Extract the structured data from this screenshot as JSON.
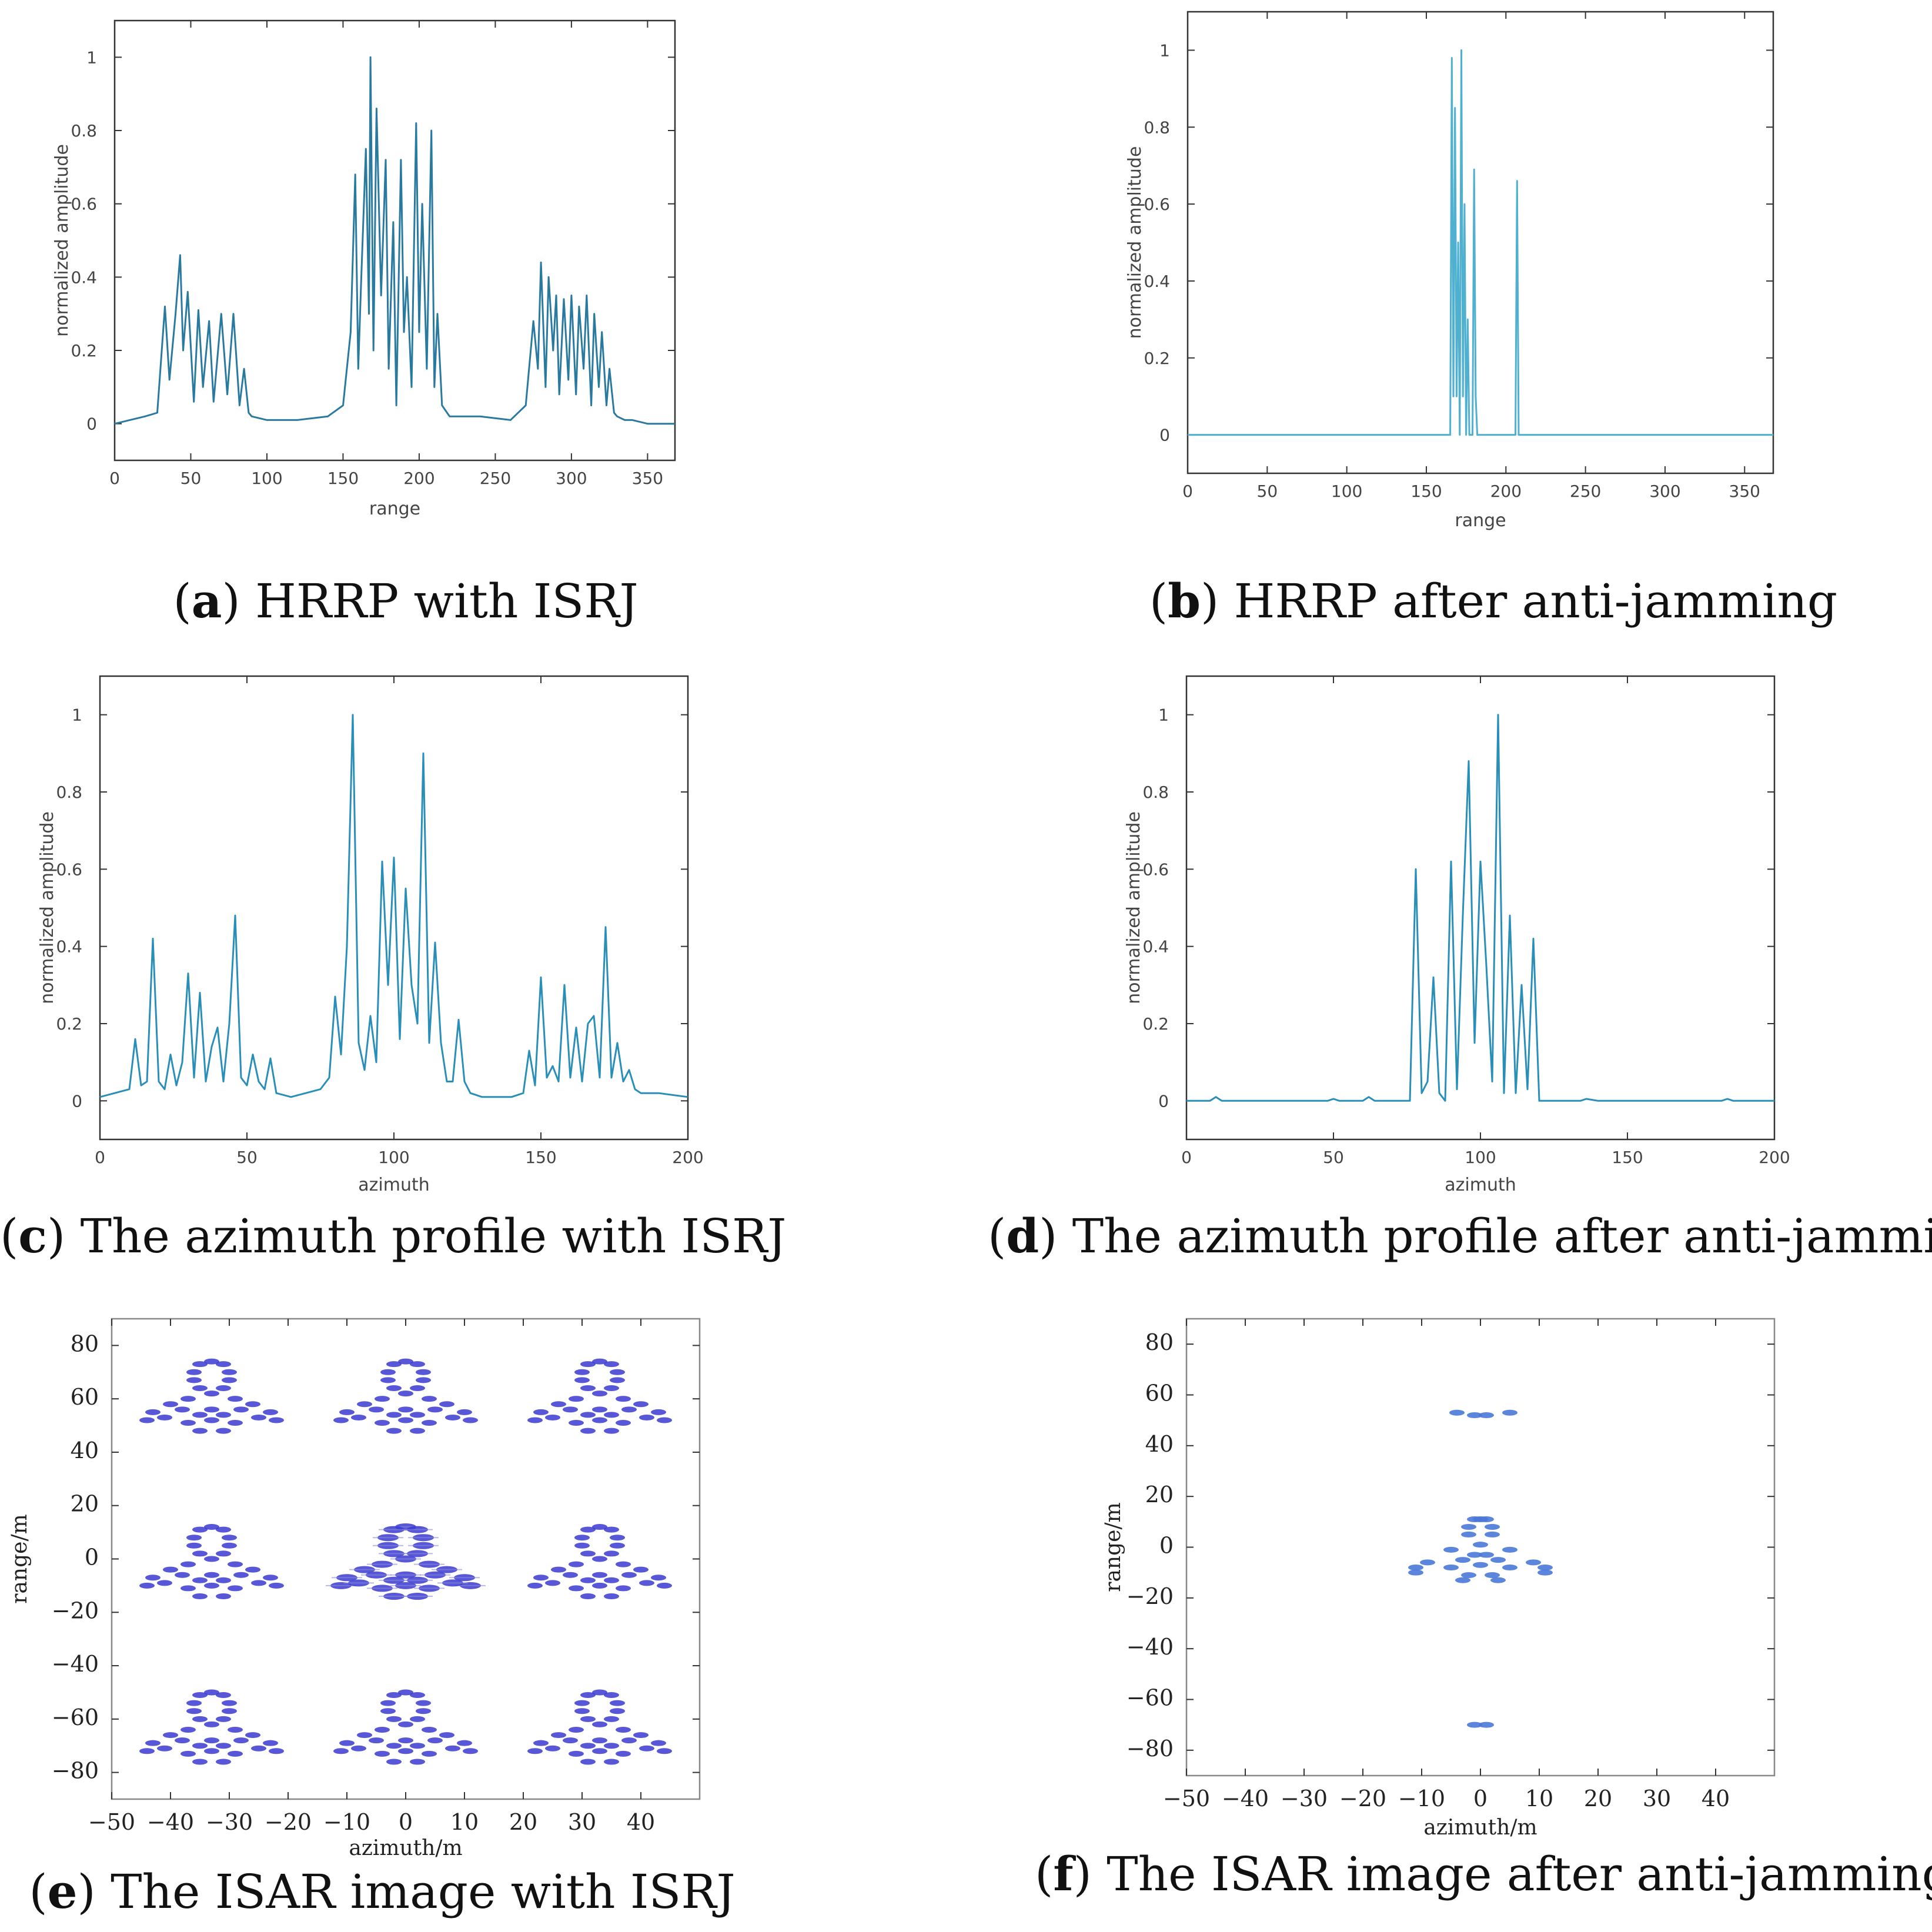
{
  "chart_data": [
    {
      "id": "a",
      "type": "line",
      "caption_letter": "a",
      "caption_text": "HRRP with ISRJ",
      "xlabel": "range",
      "ylabel": "normalized amplitude",
      "xlim": [
        0,
        368
      ],
      "ylim": [
        -0.1,
        1.1
      ],
      "xticks": [
        0,
        50,
        100,
        150,
        200,
        250,
        300,
        350
      ],
      "yticks": [
        0,
        0.2,
        0.4,
        0.6,
        0.8,
        1
      ],
      "color": "#2a7aa0",
      "x": [
        0,
        10,
        20,
        28,
        33,
        36,
        40,
        43,
        45,
        48,
        52,
        55,
        58,
        62,
        65,
        70,
        74,
        78,
        82,
        85,
        88,
        90,
        100,
        120,
        140,
        150,
        155,
        158,
        160,
        162,
        165,
        167,
        168,
        170,
        172,
        175,
        178,
        180,
        183,
        185,
        188,
        190,
        192,
        195,
        198,
        200,
        202,
        205,
        208,
        210,
        212,
        215,
        220,
        240,
        260,
        270,
        275,
        278,
        280,
        283,
        285,
        288,
        290,
        292,
        295,
        298,
        300,
        303,
        305,
        308,
        310,
        313,
        315,
        318,
        320,
        323,
        325,
        328,
        330,
        335,
        340,
        350,
        360,
        368
      ],
      "values": [
        0.0,
        0.01,
        0.02,
        0.03,
        0.32,
        0.12,
        0.3,
        0.46,
        0.2,
        0.36,
        0.06,
        0.31,
        0.1,
        0.28,
        0.06,
        0.3,
        0.08,
        0.3,
        0.05,
        0.15,
        0.03,
        0.02,
        0.01,
        0.01,
        0.02,
        0.05,
        0.25,
        0.68,
        0.15,
        0.4,
        0.75,
        0.3,
        1.0,
        0.2,
        0.86,
        0.35,
        0.72,
        0.15,
        0.55,
        0.05,
        0.72,
        0.25,
        0.4,
        0.1,
        0.82,
        0.25,
        0.6,
        0.15,
        0.8,
        0.1,
        0.3,
        0.05,
        0.02,
        0.02,
        0.01,
        0.05,
        0.28,
        0.15,
        0.44,
        0.1,
        0.4,
        0.2,
        0.35,
        0.08,
        0.34,
        0.12,
        0.35,
        0.08,
        0.32,
        0.15,
        0.35,
        0.05,
        0.3,
        0.1,
        0.25,
        0.05,
        0.15,
        0.03,
        0.02,
        0.01,
        0.01,
        0.0,
        0.0,
        0.0
      ]
    },
    {
      "id": "b",
      "type": "line",
      "caption_letter": "b",
      "caption_text": "HRRP after anti-jamming",
      "xlabel": "range",
      "ylabel": "normalized amplitude",
      "xlim": [
        0,
        368
      ],
      "ylim": [
        -0.1,
        1.1
      ],
      "xticks": [
        0,
        50,
        100,
        150,
        200,
        250,
        300,
        350
      ],
      "yticks": [
        0,
        0.2,
        0.4,
        0.6,
        0.8,
        1
      ],
      "color": "#4fb0d0",
      "x": [
        0,
        163,
        165,
        166,
        167,
        168,
        169,
        170,
        171,
        172,
        173,
        174,
        175,
        176,
        177,
        178,
        179,
        180,
        181,
        182,
        183,
        184,
        185,
        206,
        207,
        208,
        209,
        368
      ],
      "values": [
        0,
        0,
        0,
        0.98,
        0.1,
        0.85,
        0.1,
        0.5,
        0.0,
        1.0,
        0.1,
        0.6,
        0.0,
        0.3,
        0.0,
        0.0,
        0.0,
        0.69,
        0.1,
        0.0,
        0.0,
        0.0,
        0.0,
        0.0,
        0.66,
        0.0,
        0.0,
        0.0
      ]
    },
    {
      "id": "c",
      "type": "line",
      "caption_letter": "c",
      "caption_text": "The azimuth profile with ISRJ",
      "xlabel": "azimuth",
      "ylabel": "normalized amplitude",
      "xlim": [
        0,
        200
      ],
      "ylim": [
        -0.1,
        1.1
      ],
      "xticks": [
        0,
        50,
        100,
        150,
        200
      ],
      "yticks": [
        0,
        0.2,
        0.4,
        0.6,
        0.8,
        1
      ],
      "color": "#2a8fb8",
      "x": [
        0,
        5,
        10,
        12,
        14,
        16,
        18,
        20,
        22,
        24,
        26,
        28,
        30,
        32,
        34,
        36,
        38,
        40,
        42,
        44,
        46,
        48,
        50,
        52,
        54,
        56,
        58,
        60,
        65,
        70,
        75,
        78,
        80,
        82,
        84,
        86,
        88,
        90,
        92,
        94,
        96,
        98,
        100,
        102,
        104,
        106,
        108,
        110,
        112,
        114,
        116,
        118,
        120,
        122,
        124,
        126,
        130,
        140,
        144,
        146,
        148,
        150,
        152,
        154,
        156,
        158,
        160,
        162,
        164,
        166,
        168,
        170,
        172,
        174,
        176,
        178,
        180,
        182,
        184,
        186,
        190,
        200
      ],
      "values": [
        0.01,
        0.02,
        0.03,
        0.16,
        0.04,
        0.05,
        0.42,
        0.05,
        0.03,
        0.12,
        0.04,
        0.1,
        0.33,
        0.06,
        0.28,
        0.05,
        0.14,
        0.19,
        0.05,
        0.2,
        0.48,
        0.06,
        0.04,
        0.12,
        0.05,
        0.03,
        0.11,
        0.02,
        0.01,
        0.02,
        0.03,
        0.06,
        0.27,
        0.12,
        0.4,
        1.0,
        0.15,
        0.08,
        0.22,
        0.1,
        0.62,
        0.3,
        0.63,
        0.16,
        0.55,
        0.3,
        0.2,
        0.9,
        0.15,
        0.41,
        0.15,
        0.05,
        0.05,
        0.21,
        0.05,
        0.02,
        0.01,
        0.01,
        0.02,
        0.13,
        0.04,
        0.32,
        0.06,
        0.09,
        0.05,
        0.3,
        0.06,
        0.19,
        0.05,
        0.2,
        0.22,
        0.06,
        0.45,
        0.06,
        0.15,
        0.05,
        0.08,
        0.03,
        0.02,
        0.02,
        0.02,
        0.01
      ]
    },
    {
      "id": "d",
      "type": "line",
      "caption_letter": "d",
      "caption_text": "The azimuth profile after anti-jamming",
      "xlabel": "azimuth",
      "ylabel": "normalized amplitude",
      "xlim": [
        0,
        200
      ],
      "ylim": [
        -0.1,
        1.1
      ],
      "xticks": [
        0,
        50,
        100,
        150,
        200
      ],
      "yticks": [
        0,
        0.2,
        0.4,
        0.6,
        0.8,
        1
      ],
      "color": "#2a8fb8",
      "x": [
        0,
        8,
        10,
        12,
        48,
        50,
        52,
        60,
        62,
        64,
        76,
        78,
        80,
        82,
        84,
        86,
        88,
        90,
        92,
        94,
        96,
        98,
        100,
        102,
        104,
        106,
        108,
        110,
        112,
        114,
        116,
        118,
        120,
        122,
        124,
        126,
        130,
        134,
        136,
        140,
        150,
        160,
        182,
        184,
        186,
        200
      ],
      "values": [
        0,
        0,
        0.01,
        0,
        0,
        0.005,
        0,
        0,
        0.01,
        0,
        0,
        0.6,
        0.02,
        0.05,
        0.32,
        0.02,
        0.0,
        0.62,
        0.03,
        0.48,
        0.88,
        0.15,
        0.62,
        0.35,
        0.05,
        1.0,
        0.02,
        0.48,
        0.02,
        0.3,
        0.03,
        0.42,
        0.0,
        0.0,
        0.0,
        0.0,
        0.0,
        0.0,
        0.005,
        0.0,
        0.0,
        0.0,
        0.0,
        0.005,
        0.0,
        0.0
      ]
    },
    {
      "id": "e",
      "type": "scatter",
      "caption_letter": "e",
      "caption_text": "The ISAR image with ISRJ",
      "xlabel": "azimuth/m",
      "ylabel": "range/m",
      "xlim": [
        -50,
        50
      ],
      "ylim": [
        -90,
        90
      ],
      "xticks": [
        -50,
        -40,
        -30,
        -20,
        -10,
        0,
        10,
        20,
        30,
        40
      ],
      "yticks": [
        80,
        60,
        40,
        20,
        0,
        -20,
        -40,
        -60,
        -80
      ],
      "color": "#3a3ad0",
      "replica_offsets_x": [
        -33,
        0,
        33
      ],
      "replica_offsets_y": [
        62,
        0,
        -62
      ],
      "scatterers": [
        [
          0,
          12
        ],
        [
          -2,
          11
        ],
        [
          2,
          11
        ],
        [
          -3,
          8
        ],
        [
          3,
          8
        ],
        [
          -3,
          5
        ],
        [
          3,
          5
        ],
        [
          -2,
          2
        ],
        [
          2,
          2
        ],
        [
          0,
          0
        ],
        [
          -4,
          -2
        ],
        [
          4,
          -2
        ],
        [
          -7,
          -4
        ],
        [
          7,
          -4
        ],
        [
          -10,
          -7
        ],
        [
          10,
          -7
        ],
        [
          -11,
          -10
        ],
        [
          11,
          -10
        ],
        [
          -5,
          -6
        ],
        [
          5,
          -6
        ],
        [
          -2,
          -8
        ],
        [
          2,
          -8
        ],
        [
          0,
          -10
        ],
        [
          -4,
          -11
        ],
        [
          4,
          -11
        ],
        [
          -2,
          -14
        ],
        [
          2,
          -14
        ],
        [
          -8,
          -9
        ],
        [
          8,
          -9
        ],
        [
          0,
          -6
        ]
      ]
    },
    {
      "id": "f",
      "type": "scatter",
      "caption_letter": "f",
      "caption_text": "The ISAR image after anti-jamming",
      "xlabel": "azimuth/m",
      "ylabel": "range/m",
      "xlim": [
        -50,
        50
      ],
      "ylim": [
        -90,
        90
      ],
      "xticks": [
        -50,
        -40,
        -30,
        -20,
        -10,
        0,
        10,
        20,
        30,
        40
      ],
      "yticks": [
        80,
        60,
        40,
        20,
        0,
        -20,
        -40,
        -60,
        -80
      ],
      "color": "#4a78d8",
      "scatterers": [
        [
          0,
          11
        ],
        [
          -1,
          11
        ],
        [
          1,
          11
        ],
        [
          -2,
          8
        ],
        [
          2,
          8
        ],
        [
          -2,
          5
        ],
        [
          2,
          5
        ],
        [
          0,
          1
        ],
        [
          -5,
          -1
        ],
        [
          5,
          -1
        ],
        [
          -1,
          -3
        ],
        [
          1,
          -3
        ],
        [
          -3,
          -5
        ],
        [
          3,
          -5
        ],
        [
          -9,
          -6
        ],
        [
          9,
          -6
        ],
        [
          -11,
          -8
        ],
        [
          11,
          -8
        ],
        [
          -11,
          -10
        ],
        [
          11,
          -10
        ],
        [
          -5,
          -8
        ],
        [
          5,
          -8
        ],
        [
          0,
          -7
        ],
        [
          -2,
          -11
        ],
        [
          2,
          -11
        ],
        [
          -3,
          -13
        ],
        [
          3,
          -13
        ],
        [
          -1,
          52
        ],
        [
          1,
          52
        ],
        [
          -4,
          53
        ],
        [
          5,
          53
        ],
        [
          -1,
          -70
        ],
        [
          1,
          -70
        ]
      ]
    }
  ]
}
